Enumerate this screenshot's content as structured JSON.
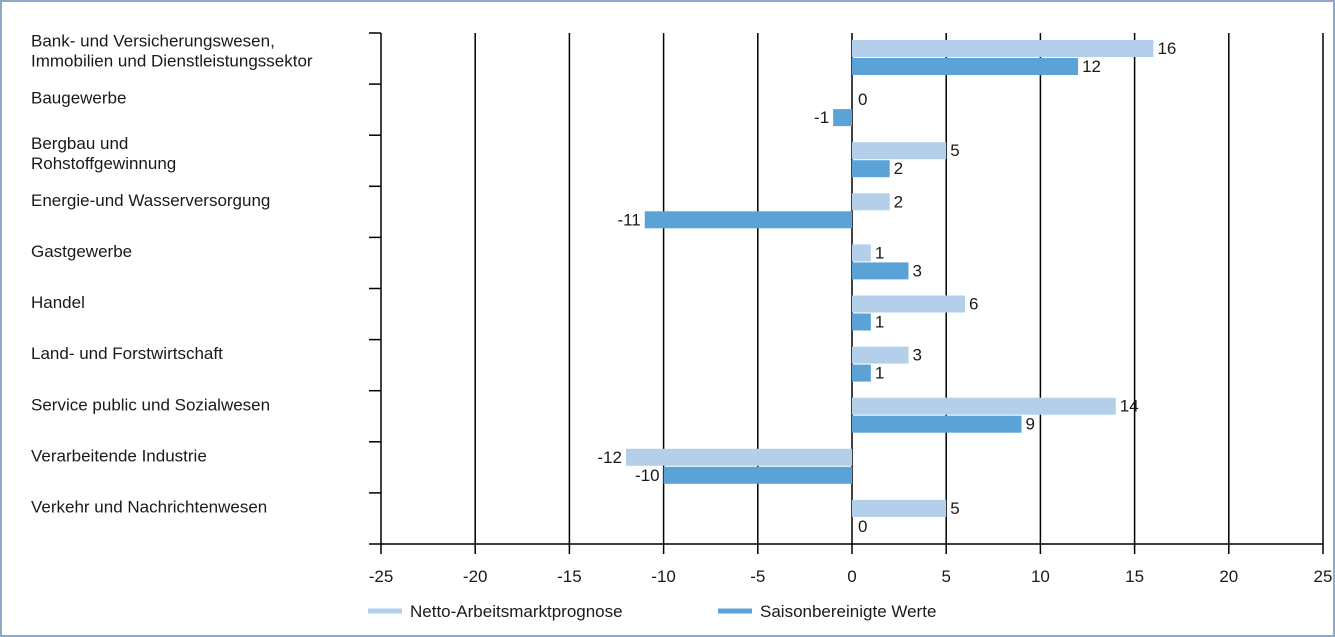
{
  "chart_data": {
    "type": "bar",
    "orientation": "horizontal",
    "categories": [
      [
        "Bank- und Versicherungswesen,",
        "Immobilien und Dienstleistungssektor"
      ],
      [
        "Baugewerbe"
      ],
      [
        "Bergbau und",
        "Rohstoffgewinnung"
      ],
      [
        "Energie-und Wasserversorgung"
      ],
      [
        "Gastgewerbe"
      ],
      [
        "Handel"
      ],
      [
        "Land- und Forstwirtschaft"
      ],
      [
        "Service public und Sozialwesen"
      ],
      [
        "Verarbeitende Industrie"
      ],
      [
        "Verkehr und Nachrichtenwesen"
      ]
    ],
    "series": [
      {
        "name": "Netto-Arbeitsmarktprognose",
        "color": "#b4cfe9",
        "values": [
          16,
          0,
          5,
          2,
          1,
          6,
          3,
          14,
          -12,
          5
        ]
      },
      {
        "name": "Saisonbereinigte Werte",
        "color": "#5ba3d6",
        "values": [
          12,
          -1,
          2,
          -11,
          3,
          1,
          1,
          9,
          -10,
          0
        ]
      }
    ],
    "xlim": [
      -25,
      25
    ],
    "xticks": [
      -25,
      -20,
      -15,
      -10,
      -5,
      0,
      5,
      10,
      15,
      20,
      25
    ],
    "grid": "vertical",
    "legend": "bottom",
    "title": "",
    "xlabel": "",
    "ylabel": ""
  }
}
